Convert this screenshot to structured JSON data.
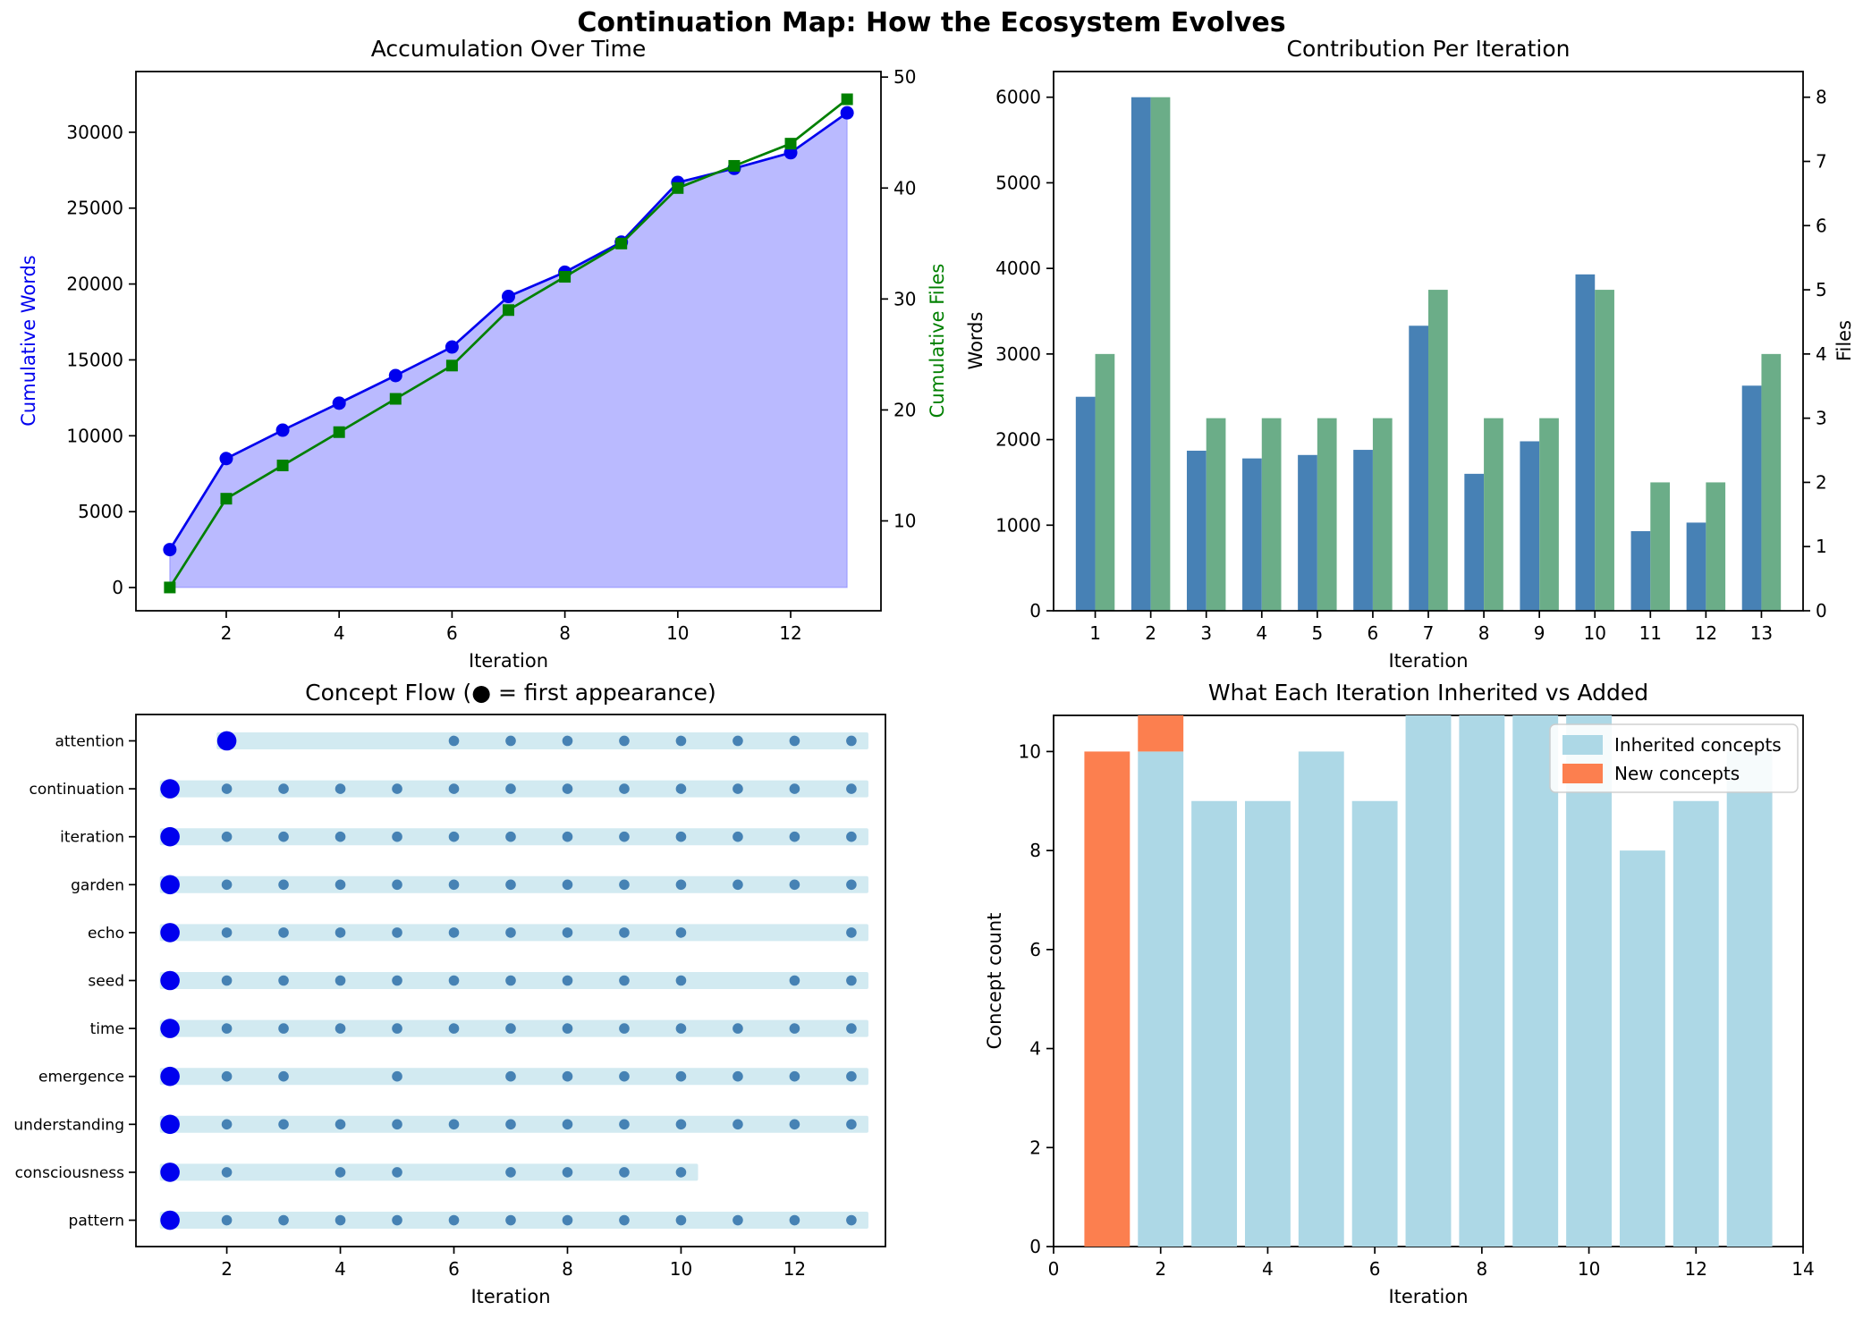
{
  "suptitle": "Continuation Map: How the Ecosystem Evolves",
  "colors": {
    "words_line": "#0000ee",
    "words_fill": "rgba(0,0,255,0.27)",
    "files_line": "#008000",
    "bar_words": "#4781b5",
    "bar_files": "#6bad88",
    "band": "#add8e6",
    "dot": "#4682b4",
    "first_dot": "#0000ee",
    "inherited": "#add8e6",
    "new": "#fc7f4f"
  },
  "chart_data": [
    {
      "type": "line",
      "title": "Accumulation Over Time",
      "xlabel": "Iteration",
      "ylabel_left": "Cumulative Words",
      "ylabel_right": "Cumulative Files",
      "x": [
        1,
        2,
        3,
        4,
        5,
        6,
        7,
        8,
        9,
        10,
        11,
        12,
        13
      ],
      "series": [
        {
          "name": "Cumulative Words",
          "axis": "left",
          "marker": "circle",
          "fill_to_zero": true,
          "values": [
            2500,
            8500,
            10370,
            12150,
            13970,
            15850,
            19180,
            20780,
            22760,
            26690,
            27620,
            28650,
            31280
          ]
        },
        {
          "name": "Cumulative Files",
          "axis": "right",
          "marker": "square",
          "values": [
            4,
            12,
            15,
            18,
            21,
            24,
            29,
            32,
            35,
            40,
            42,
            44,
            48
          ]
        }
      ],
      "xticks": [
        2,
        4,
        6,
        8,
        10,
        12
      ],
      "yticks_left": [
        0,
        5000,
        10000,
        15000,
        20000,
        25000,
        30000
      ],
      "yticks_right": [
        10,
        20,
        30,
        40,
        50
      ],
      "xlim": [
        0.4,
        13.6
      ],
      "ylim_left": [
        -1530,
        34000
      ],
      "ylim_right": [
        1.9,
        50.5
      ],
      "grid": false
    },
    {
      "type": "bar",
      "title": "Contribution Per Iteration",
      "xlabel": "Iteration",
      "ylabel_left": "Words",
      "ylabel_right": "Files",
      "categories": [
        1,
        2,
        3,
        4,
        5,
        6,
        7,
        8,
        9,
        10,
        11,
        12,
        13
      ],
      "series": [
        {
          "name": "Words",
          "axis": "left",
          "values": [
            2500,
            6000,
            1870,
            1780,
            1820,
            1880,
            3330,
            1600,
            1980,
            3930,
            930,
            1030,
            2630
          ]
        },
        {
          "name": "Files",
          "axis": "right",
          "values": [
            4,
            8,
            3,
            3,
            3,
            3,
            5,
            3,
            3,
            5,
            2,
            2,
            4
          ]
        }
      ],
      "xticks": [
        1,
        2,
        3,
        4,
        5,
        6,
        7,
        8,
        9,
        10,
        11,
        12,
        13
      ],
      "yticks_left": [
        0,
        1000,
        2000,
        3000,
        4000,
        5000,
        6000
      ],
      "yticks_right": [
        0,
        1,
        2,
        3,
        4,
        5,
        6,
        7,
        8
      ],
      "xlim": [
        0.25,
        13.75
      ],
      "ylim_left": [
        0,
        6300
      ],
      "ylim_right": [
        0,
        8.4
      ],
      "bar_width": 0.35,
      "grid": false
    },
    {
      "type": "timeline",
      "title": "Concept Flow (● = first appearance)",
      "xlabel": "Iteration",
      "xticks": [
        2,
        4,
        6,
        8,
        10,
        12
      ],
      "xlim": [
        0.4,
        13.6
      ],
      "concepts": [
        {
          "name": "attention",
          "first": 2,
          "appearances": [
            6,
            7,
            8,
            9,
            10,
            11,
            12,
            13
          ],
          "span": [
            2,
            13
          ]
        },
        {
          "name": "continuation",
          "first": 1,
          "appearances": [
            2,
            3,
            4,
            5,
            6,
            7,
            8,
            9,
            10,
            11,
            12,
            13
          ],
          "span": [
            1,
            13
          ]
        },
        {
          "name": "iteration",
          "first": 1,
          "appearances": [
            2,
            3,
            4,
            5,
            6,
            7,
            8,
            9,
            10,
            11,
            12,
            13
          ],
          "span": [
            1,
            13
          ]
        },
        {
          "name": "garden",
          "first": 1,
          "appearances": [
            2,
            3,
            4,
            5,
            6,
            7,
            8,
            9,
            10,
            11,
            12,
            13
          ],
          "span": [
            1,
            13
          ]
        },
        {
          "name": "echo",
          "first": 1,
          "appearances": [
            2,
            3,
            4,
            5,
            6,
            7,
            8,
            9,
            10,
            13
          ],
          "span": [
            1,
            13
          ]
        },
        {
          "name": "seed",
          "first": 1,
          "appearances": [
            2,
            3,
            4,
            5,
            6,
            7,
            8,
            9,
            10,
            12,
            13
          ],
          "span": [
            1,
            13
          ]
        },
        {
          "name": "time",
          "first": 1,
          "appearances": [
            2,
            3,
            4,
            5,
            6,
            7,
            8,
            9,
            10,
            11,
            12,
            13
          ],
          "span": [
            1,
            13
          ]
        },
        {
          "name": "emergence",
          "first": 1,
          "appearances": [
            2,
            3,
            5,
            7,
            8,
            9,
            10,
            11,
            12,
            13
          ],
          "span": [
            1,
            13
          ]
        },
        {
          "name": "understanding",
          "first": 1,
          "appearances": [
            2,
            3,
            4,
            5,
            6,
            7,
            8,
            9,
            10,
            11,
            12,
            13
          ],
          "span": [
            1,
            13
          ]
        },
        {
          "name": "consciousness",
          "first": 1,
          "appearances": [
            2,
            4,
            5,
            7,
            8,
            9,
            10
          ],
          "span": [
            1,
            10
          ]
        },
        {
          "name": "pattern",
          "first": 1,
          "appearances": [
            2,
            3,
            4,
            5,
            6,
            7,
            8,
            9,
            10,
            11,
            12,
            13
          ],
          "span": [
            1,
            13
          ]
        }
      ],
      "grid": false
    },
    {
      "type": "stacked-bar",
      "title": "What Each Iteration Inherited vs Added",
      "xlabel": "Iteration",
      "ylabel": "Concept count",
      "categories": [
        1,
        2,
        3,
        4,
        5,
        6,
        7,
        8,
        9,
        10,
        11,
        12,
        13
      ],
      "series": [
        {
          "name": "Inherited concepts",
          "values": [
            0,
            10,
            9,
            9,
            10,
            9,
            11,
            11,
            11,
            11,
            8,
            9,
            10
          ]
        },
        {
          "name": "New concepts",
          "values": [
            10,
            1,
            0,
            0,
            0,
            0,
            0,
            0,
            0,
            0,
            0,
            0,
            0
          ]
        }
      ],
      "xticks": [
        0,
        2,
        4,
        6,
        8,
        10,
        12,
        14
      ],
      "yticks": [
        0,
        2,
        4,
        6,
        8,
        10
      ],
      "xlim": [
        0,
        14
      ],
      "ylim": [
        0,
        10.73
      ],
      "bar_width": 0.85,
      "legend_position": "upper right",
      "grid": false
    }
  ]
}
